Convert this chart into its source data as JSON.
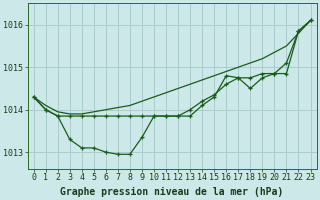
{
  "title": "Graphe pression niveau de la mer (hPa)",
  "background_color": "#cce8e8",
  "grid_color": "#aacccc",
  "line_color": "#1a5c1a",
  "hours": [
    0,
    1,
    2,
    3,
    4,
    5,
    6,
    7,
    8,
    9,
    10,
    11,
    12,
    13,
    14,
    15,
    16,
    17,
    18,
    19,
    20,
    21,
    22,
    23
  ],
  "series_smooth": [
    1014.3,
    1014.1,
    1013.95,
    1013.9,
    1013.9,
    1013.95,
    1014.0,
    1014.05,
    1014.1,
    1014.2,
    1014.3,
    1014.4,
    1014.5,
    1014.6,
    1014.7,
    1014.8,
    1014.9,
    1015.0,
    1015.1,
    1015.2,
    1015.35,
    1015.5,
    1015.8,
    1016.1
  ],
  "series_variable": [
    1014.3,
    1014.0,
    1013.85,
    1013.3,
    1013.1,
    1013.1,
    1013.0,
    1012.95,
    1012.95,
    1013.35,
    1013.85,
    1013.85,
    1013.85,
    1013.85,
    1014.1,
    1014.3,
    1014.8,
    1014.75,
    1014.5,
    1014.75,
    1014.85,
    1015.1,
    1015.85,
    1016.1
  ],
  "series_middle": [
    1014.3,
    1014.0,
    1013.85,
    1013.85,
    1013.85,
    1013.85,
    1013.85,
    1013.85,
    1013.85,
    1013.85,
    1013.85,
    1013.85,
    1013.85,
    1014.0,
    1014.2,
    1014.35,
    1014.6,
    1014.75,
    1014.75,
    1014.85,
    1014.85,
    1014.85,
    1015.85,
    1016.1
  ],
  "ylim": [
    1012.6,
    1016.5
  ],
  "yticks": [
    1013,
    1014,
    1015,
    1016
  ],
  "title_fontsize": 7,
  "tick_fontsize": 6
}
